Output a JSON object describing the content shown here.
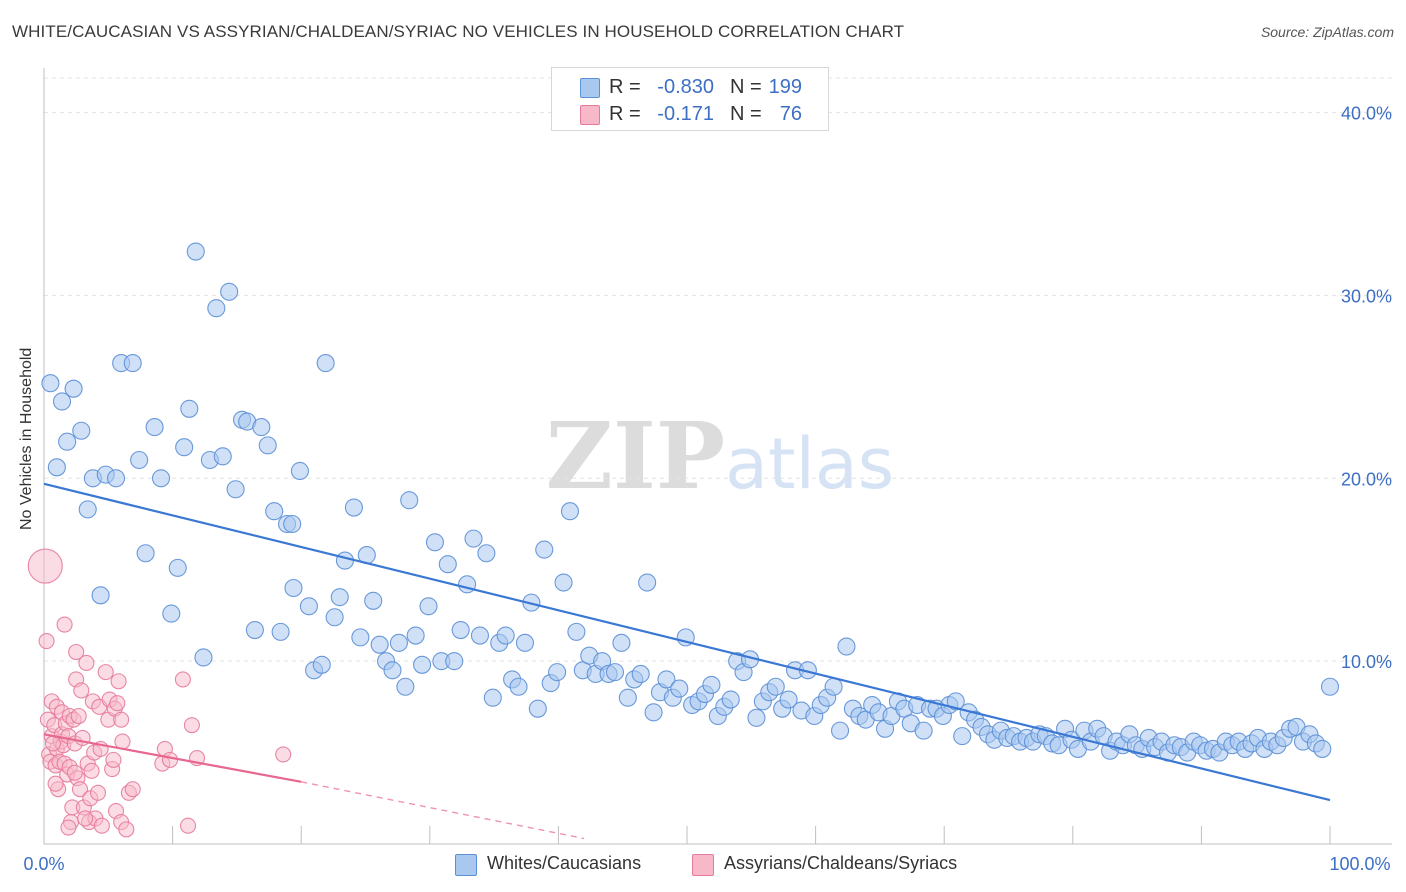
{
  "title": "WHITE/CAUCASIAN VS ASSYRIAN/CHALDEAN/SYRIAC NO VEHICLES IN HOUSEHOLD CORRELATION CHART",
  "source": "Source: ZipAtlas.com",
  "watermark": "ZIPatlas",
  "stats": [
    {
      "r_label": "R =",
      "r_value": "-0.830",
      "n_label": "N =",
      "n_value": "199",
      "color": "#a9c8f0",
      "border": "#5b8fd6"
    },
    {
      "r_label": "R =",
      "r_value": "-0.171",
      "n_label": "N =",
      "n_value": "76",
      "color": "#f7b9ca",
      "border": "#e67a9b"
    }
  ],
  "legend": [
    {
      "label": "Whites/Caucasians",
      "color": "#a9c8f0",
      "border": "#5b8fd6"
    },
    {
      "label": "Assyrians/Chaldeans/Syriacs",
      "color": "#f7b9ca",
      "border": "#e67a9b"
    }
  ],
  "chart_data": {
    "type": "scatter",
    "title": "WHITE/CAUCASIAN VS ASSYRIAN/CHALDEAN/SYRIAC NO VEHICLES IN HOUSEHOLD CORRELATION CHART",
    "xlabel": "",
    "ylabel": "No Vehicles in Household",
    "xlim": [
      0,
      100
    ],
    "ylim": [
      0,
      42
    ],
    "x_tick_labels": [
      "0.0%",
      "100.0%"
    ],
    "y_tick_labels": [
      "10.0%",
      "20.0%",
      "30.0%",
      "40.0%"
    ],
    "y_ticks": [
      10,
      20,
      30,
      40
    ],
    "grid": true,
    "legend_position": "bottom",
    "colors": {
      "blue": "#3a78d4",
      "pink": "#e8678f",
      "axis_text": "#3c6fc5"
    },
    "series": [
      {
        "name": "Whites/Caucasians",
        "color": "#a9c8f0",
        "edge": "#5b8fd6",
        "trend": {
          "x": [
            0,
            100
          ],
          "y": [
            19.7,
            2.4
          ]
        },
        "points": [
          [
            0.5,
            25.2
          ],
          [
            1.0,
            20.6
          ],
          [
            1.4,
            24.2
          ],
          [
            1.8,
            22.0
          ],
          [
            2.3,
            24.9
          ],
          [
            2.9,
            22.6
          ],
          [
            3.4,
            18.3
          ],
          [
            3.8,
            20.0
          ],
          [
            4.4,
            13.6
          ],
          [
            4.8,
            20.2
          ],
          [
            5.6,
            20.0
          ],
          [
            6.0,
            26.3
          ],
          [
            6.9,
            26.3
          ],
          [
            7.4,
            21.0
          ],
          [
            7.9,
            15.9
          ],
          [
            8.6,
            22.8
          ],
          [
            9.1,
            20.0
          ],
          [
            9.9,
            12.6
          ],
          [
            10.4,
            15.1
          ],
          [
            10.9,
            21.7
          ],
          [
            11.3,
            23.8
          ],
          [
            11.8,
            32.4
          ],
          [
            12.4,
            10.2
          ],
          [
            12.9,
            21.0
          ],
          [
            13.4,
            29.3
          ],
          [
            13.9,
            21.2
          ],
          [
            14.4,
            30.2
          ],
          [
            14.9,
            19.4
          ],
          [
            15.4,
            23.2
          ],
          [
            15.8,
            23.1
          ],
          [
            16.4,
            11.7
          ],
          [
            16.9,
            22.8
          ],
          [
            17.4,
            21.8
          ],
          [
            17.9,
            18.2
          ],
          [
            18.4,
            11.6
          ],
          [
            18.9,
            17.5
          ],
          [
            19.3,
            17.5
          ],
          [
            19.4,
            14.0
          ],
          [
            19.9,
            20.4
          ],
          [
            20.6,
            13.0
          ],
          [
            21.0,
            9.5
          ],
          [
            21.6,
            9.8
          ],
          [
            21.9,
            26.3
          ],
          [
            22.6,
            12.4
          ],
          [
            23.0,
            13.5
          ],
          [
            23.4,
            15.5
          ],
          [
            24.1,
            18.4
          ],
          [
            24.6,
            11.3
          ],
          [
            25.1,
            15.8
          ],
          [
            25.6,
            13.3
          ],
          [
            26.1,
            10.9
          ],
          [
            26.6,
            10.0
          ],
          [
            27.1,
            9.5
          ],
          [
            27.6,
            11.0
          ],
          [
            28.1,
            8.6
          ],
          [
            28.4,
            18.8
          ],
          [
            28.9,
            11.4
          ],
          [
            29.4,
            9.8
          ],
          [
            29.9,
            13.0
          ],
          [
            30.4,
            16.5
          ],
          [
            30.9,
            10.0
          ],
          [
            31.4,
            15.3
          ],
          [
            31.9,
            10.0
          ],
          [
            32.4,
            11.7
          ],
          [
            32.9,
            14.2
          ],
          [
            33.4,
            16.7
          ],
          [
            33.9,
            11.4
          ],
          [
            34.4,
            15.9
          ],
          [
            34.9,
            8.0
          ],
          [
            35.4,
            11.0
          ],
          [
            35.9,
            11.4
          ],
          [
            36.4,
            9.0
          ],
          [
            36.9,
            8.6
          ],
          [
            37.4,
            11.0
          ],
          [
            37.9,
            13.2
          ],
          [
            38.4,
            7.4
          ],
          [
            38.9,
            16.1
          ],
          [
            39.4,
            8.8
          ],
          [
            39.9,
            9.4
          ],
          [
            40.4,
            14.3
          ],
          [
            40.9,
            18.2
          ],
          [
            41.4,
            11.6
          ],
          [
            41.9,
            9.5
          ],
          [
            42.4,
            10.3
          ],
          [
            42.9,
            9.3
          ],
          [
            43.4,
            10.0
          ],
          [
            43.9,
            9.3
          ],
          [
            44.4,
            9.4
          ],
          [
            44.9,
            11.0
          ],
          [
            45.4,
            8.0
          ],
          [
            45.9,
            9.0
          ],
          [
            46.4,
            9.3
          ],
          [
            46.9,
            14.3
          ],
          [
            47.4,
            7.2
          ],
          [
            47.9,
            8.3
          ],
          [
            48.4,
            9.0
          ],
          [
            48.9,
            8.0
          ],
          [
            49.4,
            8.5
          ],
          [
            49.9,
            11.3
          ],
          [
            50.4,
            7.6
          ],
          [
            50.9,
            7.8
          ],
          [
            51.4,
            8.2
          ],
          [
            51.9,
            8.7
          ],
          [
            52.4,
            7.0
          ],
          [
            52.9,
            7.5
          ],
          [
            53.4,
            7.9
          ],
          [
            53.9,
            10.0
          ],
          [
            54.4,
            9.4
          ],
          [
            54.9,
            10.1
          ],
          [
            55.4,
            6.9
          ],
          [
            55.9,
            7.8
          ],
          [
            56.4,
            8.3
          ],
          [
            56.9,
            8.6
          ],
          [
            57.4,
            7.4
          ],
          [
            57.9,
            7.9
          ],
          [
            58.4,
            9.5
          ],
          [
            58.9,
            7.3
          ],
          [
            59.4,
            9.5
          ],
          [
            59.9,
            7.0
          ],
          [
            60.4,
            7.6
          ],
          [
            60.9,
            8.0
          ],
          [
            61.4,
            8.6
          ],
          [
            61.9,
            6.2
          ],
          [
            62.4,
            10.8
          ],
          [
            62.9,
            7.4
          ],
          [
            63.4,
            7.0
          ],
          [
            63.9,
            6.8
          ],
          [
            64.4,
            7.6
          ],
          [
            64.9,
            7.2
          ],
          [
            65.4,
            6.3
          ],
          [
            65.9,
            7.0
          ],
          [
            66.4,
            7.8
          ],
          [
            66.9,
            7.4
          ],
          [
            67.4,
            6.6
          ],
          [
            67.9,
            7.6
          ],
          [
            68.4,
            6.2
          ],
          [
            68.9,
            7.4
          ],
          [
            69.4,
            7.4
          ],
          [
            69.9,
            7.0
          ],
          [
            70.4,
            7.6
          ],
          [
            70.9,
            7.8
          ],
          [
            71.4,
            5.9
          ],
          [
            71.9,
            7.2
          ],
          [
            72.4,
            6.8
          ],
          [
            72.9,
            6.4
          ],
          [
            73.4,
            6.0
          ],
          [
            73.9,
            5.7
          ],
          [
            74.4,
            6.2
          ],
          [
            74.9,
            5.8
          ],
          [
            75.4,
            5.9
          ],
          [
            75.9,
            5.6
          ],
          [
            76.4,
            5.8
          ],
          [
            76.9,
            5.6
          ],
          [
            77.4,
            6.0
          ],
          [
            77.9,
            5.9
          ],
          [
            78.4,
            5.5
          ],
          [
            78.9,
            5.4
          ],
          [
            79.4,
            6.3
          ],
          [
            79.9,
            5.7
          ],
          [
            80.4,
            5.2
          ],
          [
            80.9,
            6.2
          ],
          [
            81.4,
            5.6
          ],
          [
            81.9,
            6.3
          ],
          [
            82.4,
            5.9
          ],
          [
            82.9,
            5.1
          ],
          [
            83.4,
            5.6
          ],
          [
            83.9,
            5.4
          ],
          [
            84.4,
            6.0
          ],
          [
            84.9,
            5.4
          ],
          [
            85.4,
            5.2
          ],
          [
            85.9,
            5.8
          ],
          [
            86.4,
            5.3
          ],
          [
            86.9,
            5.6
          ],
          [
            87.4,
            5.0
          ],
          [
            87.9,
            5.4
          ],
          [
            88.4,
            5.3
          ],
          [
            88.9,
            5.0
          ],
          [
            89.4,
            5.6
          ],
          [
            89.9,
            5.4
          ],
          [
            90.4,
            5.1
          ],
          [
            90.9,
            5.2
          ],
          [
            91.4,
            5.0
          ],
          [
            91.9,
            5.6
          ],
          [
            92.4,
            5.4
          ],
          [
            92.9,
            5.6
          ],
          [
            93.4,
            5.2
          ],
          [
            93.9,
            5.5
          ],
          [
            94.4,
            5.8
          ],
          [
            94.9,
            5.2
          ],
          [
            95.4,
            5.6
          ],
          [
            95.9,
            5.4
          ],
          [
            96.4,
            5.8
          ],
          [
            96.9,
            6.3
          ],
          [
            97.4,
            6.4
          ],
          [
            97.9,
            5.6
          ],
          [
            98.4,
            6.0
          ],
          [
            98.9,
            5.5
          ],
          [
            99.4,
            5.2
          ],
          [
            100.0,
            8.6
          ]
        ]
      },
      {
        "name": "Assyrians/Chaldeans/Syriacs",
        "color": "#f7b9ca",
        "edge": "#e67a9b",
        "trend": {
          "x": [
            0,
            20
          ],
          "y": [
            6.0,
            3.4
          ]
        },
        "trend_dashed": {
          "x": [
            20,
            42
          ],
          "y": [
            3.4,
            0.3
          ]
        },
        "points": [
          [
            0.1,
            15.2
          ],
          [
            0.2,
            11.1
          ],
          [
            0.3,
            6.8
          ],
          [
            0.4,
            4.9
          ],
          [
            0.5,
            4.5
          ],
          [
            0.6,
            7.8
          ],
          [
            0.6,
            5.9
          ],
          [
            0.8,
            6.5
          ],
          [
            0.9,
            4.3
          ],
          [
            1.0,
            7.5
          ],
          [
            1.0,
            5.2
          ],
          [
            1.1,
            3.0
          ],
          [
            1.2,
            4.5
          ],
          [
            1.3,
            5.6
          ],
          [
            1.4,
            7.2
          ],
          [
            1.4,
            6.0
          ],
          [
            1.5,
            5.4
          ],
          [
            1.6,
            12.0
          ],
          [
            1.6,
            4.4
          ],
          [
            1.7,
            6.6
          ],
          [
            1.8,
            3.8
          ],
          [
            1.9,
            5.9
          ],
          [
            2.0,
            7.0
          ],
          [
            2.0,
            4.2
          ],
          [
            2.1,
            1.2
          ],
          [
            2.2,
            2.0
          ],
          [
            2.3,
            6.8
          ],
          [
            2.4,
            5.5
          ],
          [
            2.5,
            10.5
          ],
          [
            2.5,
            9.0
          ],
          [
            2.6,
            3.6
          ],
          [
            2.7,
            7.0
          ],
          [
            2.8,
            3.0
          ],
          [
            2.9,
            8.4
          ],
          [
            3.0,
            5.8
          ],
          [
            3.1,
            2.0
          ],
          [
            3.3,
            9.9
          ],
          [
            3.4,
            4.4
          ],
          [
            3.5,
            1.2
          ],
          [
            3.6,
            2.5
          ],
          [
            3.7,
            4.0
          ],
          [
            3.8,
            7.8
          ],
          [
            3.9,
            5.0
          ],
          [
            4.0,
            1.4
          ],
          [
            4.2,
            2.8
          ],
          [
            4.3,
            7.5
          ],
          [
            4.4,
            5.2
          ],
          [
            4.5,
            1.0
          ],
          [
            4.8,
            9.4
          ],
          [
            5.0,
            6.8
          ],
          [
            5.1,
            7.9
          ],
          [
            5.3,
            4.1
          ],
          [
            5.4,
            4.6
          ],
          [
            5.5,
            7.4
          ],
          [
            5.6,
            1.8
          ],
          [
            5.7,
            7.7
          ],
          [
            5.8,
            8.9
          ],
          [
            6.0,
            6.8
          ],
          [
            6.0,
            1.2
          ],
          [
            6.1,
            5.6
          ],
          [
            6.4,
            0.8
          ],
          [
            6.6,
            2.8
          ],
          [
            6.9,
            3.0
          ],
          [
            9.2,
            4.4
          ],
          [
            9.4,
            5.2
          ],
          [
            9.8,
            4.6
          ],
          [
            10.8,
            9.0
          ],
          [
            11.2,
            1.0
          ],
          [
            11.5,
            6.5
          ],
          [
            11.9,
            4.7
          ],
          [
            18.6,
            4.9
          ],
          [
            2.4,
            3.9
          ],
          [
            1.9,
            0.9
          ],
          [
            3.2,
            1.4
          ],
          [
            0.7,
            5.5
          ],
          [
            0.9,
            3.3
          ]
        ]
      }
    ]
  }
}
